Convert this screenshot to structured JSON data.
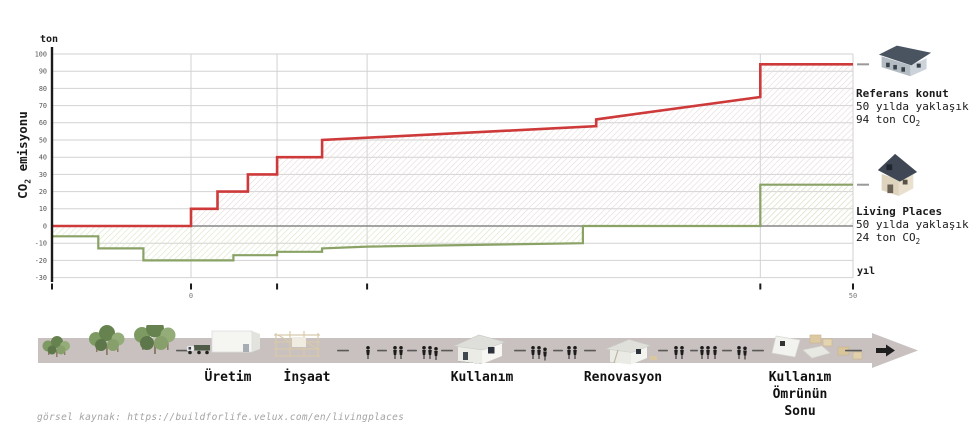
{
  "chart_data": {
    "type": "area",
    "subtype": "step-area",
    "title": "",
    "y_unit": "ton",
    "x_unit": "yıl",
    "ylabel": "CO₂ emisyonu",
    "ylabel_parts": {
      "base": "CO",
      "sub": "2",
      "rest": " emisyonu"
    },
    "ylim": [
      -30,
      100
    ],
    "xlim": [
      -10.5,
      50
    ],
    "yticks": [
      -30,
      -20,
      -10,
      0,
      10,
      20,
      30,
      40,
      50,
      60,
      70,
      80,
      90,
      100
    ],
    "xticks": [
      {
        "x": -10.5,
        "label": ""
      },
      {
        "x": 0,
        "label": "0"
      },
      {
        "x": 6.5,
        "label": ""
      },
      {
        "x": 13.3,
        "label": ""
      },
      {
        "x": 43,
        "label": ""
      },
      {
        "x": 50,
        "label": "50"
      }
    ],
    "grid": true,
    "legend_position": "right",
    "colors": {
      "grid": "#d2d2d2",
      "zero_line": "#878787",
      "axis": "#1a1a1a",
      "tick_label": "#555555",
      "connector": "#999999"
    },
    "series": [
      {
        "name": "Referans konut",
        "color": "#ce3a3a",
        "hatch_color": "#e6dada",
        "line_width": 2.6,
        "points": [
          [
            -10.5,
            0
          ],
          [
            0,
            0
          ],
          [
            0,
            10
          ],
          [
            2,
            10
          ],
          [
            2,
            20
          ],
          [
            4.3,
            20
          ],
          [
            4.3,
            30
          ],
          [
            6.5,
            30
          ],
          [
            6.5,
            40
          ],
          [
            9.9,
            40
          ],
          [
            9.9,
            50
          ],
          [
            30.6,
            58
          ],
          [
            30.6,
            62
          ],
          [
            43,
            75
          ],
          [
            43,
            94
          ],
          [
            50,
            94
          ]
        ]
      },
      {
        "name": "Living Places",
        "color": "#8aa266",
        "hatch_color": "#d9e4c6",
        "line_width": 2.2,
        "points": [
          [
            -10.5,
            -6
          ],
          [
            -7,
            -6
          ],
          [
            -7,
            -13
          ],
          [
            -3.6,
            -13
          ],
          [
            -3.6,
            -20
          ],
          [
            3.2,
            -20
          ],
          [
            3.2,
            -17
          ],
          [
            6.5,
            -17
          ],
          [
            6.5,
            -15
          ],
          [
            9.9,
            -15
          ],
          [
            9.9,
            -13
          ],
          [
            13.3,
            -12
          ],
          [
            29.6,
            -10
          ],
          [
            29.6,
            0
          ],
          [
            43,
            0
          ],
          [
            43,
            24
          ],
          [
            50,
            24
          ]
        ]
      }
    ]
  },
  "legend": {
    "entries": [
      {
        "name": "Referans konut",
        "line2": "50 yılda yaklaşık",
        "amount": "94 ton CO",
        "amount_sub": "2"
      },
      {
        "name": "Living Places",
        "line2": "50 yılda yaklaşık",
        "amount": "24 ton CO",
        "amount_sub": "2"
      }
    ]
  },
  "timeline": {
    "stages": [
      {
        "label": "Üretim"
      },
      {
        "label": "İnşaat"
      },
      {
        "label": "Kullanım"
      },
      {
        "label": "Renovasyon"
      },
      {
        "label": "Kullanım Ömrünün Sonu"
      }
    ]
  },
  "caption": "görsel kaynak: https://buildforlife.velux.com/en/livingplaces"
}
